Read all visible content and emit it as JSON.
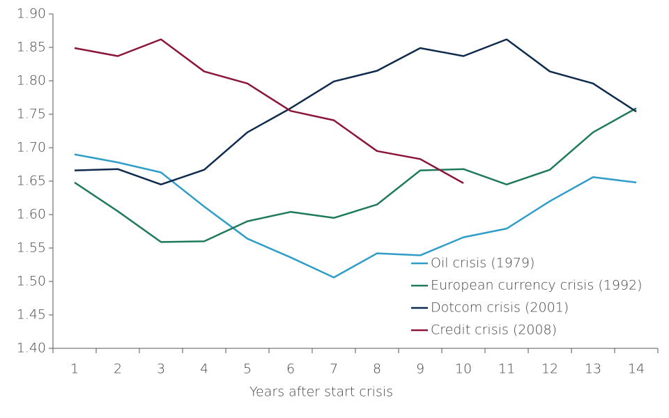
{
  "chart_data": {
    "type": "line",
    "xlabel": "Years after start crisis",
    "categories": [
      1,
      2,
      3,
      4,
      5,
      6,
      7,
      8,
      9,
      10,
      11,
      12,
      13,
      14
    ],
    "series": [
      {
        "name": "Oil crisis (1979)",
        "color": "#2f9dc8",
        "values": [
          1.69,
          1.678,
          1.663,
          1.612,
          1.564,
          1.536,
          1.506,
          1.542,
          1.539,
          1.566,
          1.579,
          1.62,
          1.656,
          1.648
        ]
      },
      {
        "name": "European currency crisis (1992)",
        "color": "#1f7a5c",
        "values": [
          1.648,
          1.605,
          1.559,
          1.56,
          1.59,
          1.604,
          1.595,
          1.615,
          1.666,
          1.668,
          1.645,
          1.667,
          1.723,
          1.759
        ]
      },
      {
        "name": "Dotcom crisis (2001)",
        "color": "#0e2a4c",
        "values": [
          1.666,
          1.668,
          1.645,
          1.667,
          1.723,
          1.759,
          1.799,
          1.815,
          1.849,
          1.837,
          1.862,
          1.814,
          1.796,
          1.754
        ]
      },
      {
        "name": "Credit crisis (2008)",
        "color": "#8a1538",
        "values": [
          1.849,
          1.837,
          1.862,
          1.814,
          1.796,
          1.755,
          1.741,
          1.695,
          1.683,
          1.647,
          null,
          null,
          null,
          null
        ]
      }
    ],
    "ylim": [
      1.4,
      1.9
    ],
    "yticks": [
      {
        "value": 1.4,
        "label": "1.40"
      },
      {
        "value": 1.45,
        "label": "1.45"
      },
      {
        "value": 1.5,
        "label": "1.50"
      },
      {
        "value": 1.55,
        "label": "1.55"
      },
      {
        "value": 1.6,
        "label": "1.60"
      },
      {
        "value": 1.65,
        "label": "1.65"
      },
      {
        "value": 1.7,
        "label": "1.70"
      },
      {
        "value": 1.75,
        "label": "1.75"
      },
      {
        "value": 1.8,
        "label": "1.80"
      },
      {
        "value": 1.85,
        "label": "1.85"
      },
      {
        "value": 1.9,
        "label": "1.90"
      }
    ],
    "grid": false
  }
}
